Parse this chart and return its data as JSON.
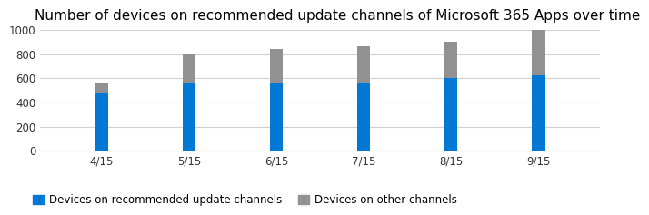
{
  "title": "Number of devices on recommended update channels of Microsoft 365 Apps over time",
  "categories": [
    "4/15",
    "5/15",
    "6/15",
    "7/15",
    "8/15",
    "9/15"
  ],
  "blue_values": [
    480,
    560,
    560,
    555,
    605,
    625
  ],
  "gray_values": [
    80,
    235,
    285,
    310,
    295,
    375
  ],
  "blue_color": "#0078d4",
  "gray_color": "#919191",
  "background_color": "#ffffff",
  "ylim": [
    0,
    1000
  ],
  "yticks": [
    0,
    200,
    400,
    600,
    800,
    1000
  ],
  "legend_blue": "Devices on recommended update channels",
  "legend_gray": "Devices on other channels",
  "title_fontsize": 11,
  "tick_fontsize": 8.5,
  "legend_fontsize": 8.5,
  "bar_width": 0.15
}
